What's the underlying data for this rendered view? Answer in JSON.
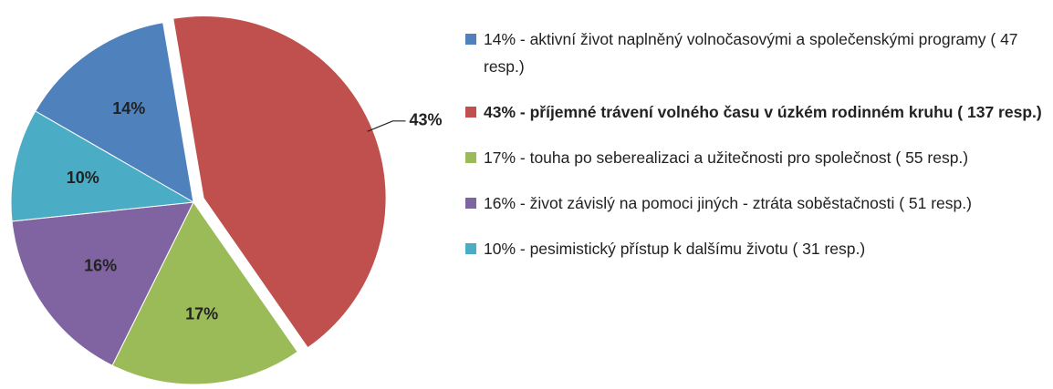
{
  "chart_data": {
    "type": "pie",
    "categories": [
      "14% -  aktivní život naplněný volnočasovými a společenskými programy ( 47 resp.)",
      "43% - příjemné trávení volného času v úzkém rodinném kruhu ( 137 resp.)",
      "17% - touha po seberealizaci a užitečnosti pro společnost ( 55 resp.)",
      "16% - život závislý na pomoci jiných - ztráta soběstačnosti ( 51 resp.)",
      "10% - pesimistický přístup k dalšímu životu ( 31 resp.)"
    ],
    "values": [
      14,
      43,
      17,
      16,
      10
    ],
    "value_labels": [
      "14%",
      "43%",
      "17%",
      "16%",
      "10%"
    ],
    "colors": [
      "#4f81bd",
      "#c0504d",
      "#9bbb59",
      "#8064a2",
      "#4bacc6"
    ],
    "explode": [
      false,
      true,
      false,
      false,
      false
    ],
    "legend_bold": [
      false,
      true,
      false,
      false,
      false
    ]
  }
}
